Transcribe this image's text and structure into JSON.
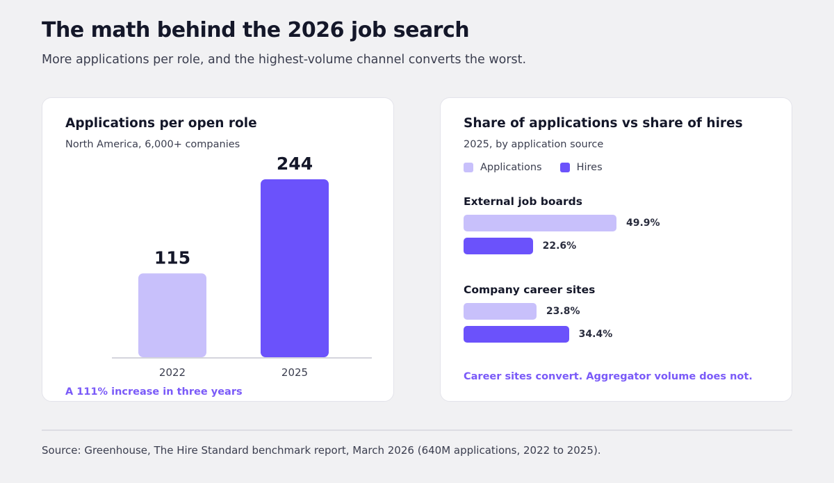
{
  "header": {
    "title": "The math behind the 2026 job search",
    "subtitle": "More applications per role, and the highest-volume channel converts the worst."
  },
  "colors": {
    "light_purple": "#c8c0fb",
    "dark_purple": "#6b52fb",
    "accent_text": "#7a5af8"
  },
  "chart_data": [
    {
      "type": "bar",
      "title": "Applications per open role",
      "subtitle": "North America, 6,000+ companies",
      "categories": [
        "2022",
        "2025"
      ],
      "values": [
        115,
        244
      ],
      "value_labels": [
        "115",
        "244"
      ],
      "ylim": [
        0,
        244
      ],
      "takeaway": "A 111% increase in three years"
    },
    {
      "type": "bar",
      "orientation": "horizontal",
      "title": "Share of applications vs share of hires",
      "subtitle": "2025, by application source",
      "legend": [
        "Applications",
        "Hires"
      ],
      "categories": [
        "External job boards",
        "Company career sites"
      ],
      "series": [
        {
          "name": "Applications",
          "values": [
            49.9,
            23.8
          ],
          "labels": [
            "49.9%",
            "23.8%"
          ]
        },
        {
          "name": "Hires",
          "values": [
            22.6,
            34.4
          ],
          "labels": [
            "22.6%",
            "34.4%"
          ]
        }
      ],
      "takeaway": "Career sites convert. Aggregator volume does not."
    }
  ],
  "footer": {
    "source": "Source: Greenhouse, The Hire Standard benchmark report, March 2026 (640M applications, 2022 to 2025)."
  }
}
